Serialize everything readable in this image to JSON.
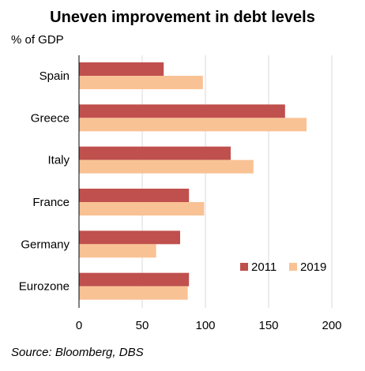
{
  "colors": {
    "s2011": "#c0504d",
    "s2019": "#f9c294",
    "grid": "#d9d9d9",
    "axis": "#000000"
  },
  "chart_data": {
    "type": "bar",
    "orientation": "horizontal",
    "title": "Uneven improvement in debt levels",
    "unit_label": "% of GDP",
    "source": "Source: Bloomberg, DBS",
    "categories": [
      "Spain",
      "Greece",
      "Italy",
      "France",
      "Germany",
      "Eurozone"
    ],
    "series": [
      {
        "name": "2011",
        "values": [
          67,
          163,
          120,
          87,
          80,
          87
        ]
      },
      {
        "name": "2019",
        "values": [
          98,
          180,
          138,
          99,
          61,
          86
        ]
      }
    ],
    "xlim": [
      0,
      200
    ],
    "xticks": [
      0,
      50,
      100,
      150,
      200
    ],
    "grid": true,
    "legend_position": "bottom-right"
  }
}
